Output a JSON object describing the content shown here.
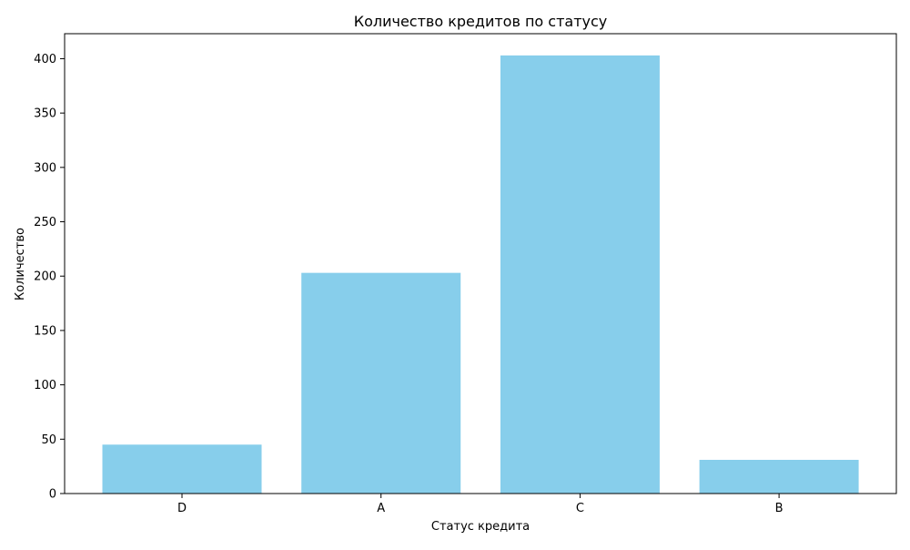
{
  "chart_data": {
    "type": "bar",
    "title": "Количество кредитов по статусу",
    "xlabel": "Статус кредита",
    "ylabel": "Количество",
    "categories": [
      "D",
      "A",
      "C",
      "B"
    ],
    "values": [
      45,
      203,
      403,
      31
    ],
    "ylim": [
      0,
      423
    ],
    "yticks": [
      0,
      50,
      100,
      150,
      200,
      250,
      300,
      350,
      400
    ],
    "bar_color": "#87ceeb",
    "grid": false,
    "legend": "none"
  }
}
